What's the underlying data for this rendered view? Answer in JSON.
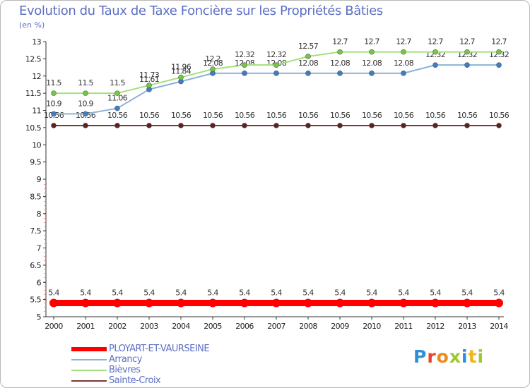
{
  "header": {
    "title": "Evolution du Taux de Taxe Foncière sur les Propriétés Bâties",
    "unit": "(en %)"
  },
  "chart_data": {
    "type": "line",
    "title": "Evolution du Taux de Taxe Foncière sur les Propriétés Bâties",
    "ylabel": "(en %)",
    "xlabel": "",
    "ylim": [
      5,
      13
    ],
    "yticks": [
      5,
      5.5,
      6,
      6.5,
      7,
      7.5,
      8,
      8.5,
      9,
      9.5,
      10,
      10.5,
      11,
      11.5,
      12,
      12.5,
      13
    ],
    "ytick_labels": [
      "5",
      "5.5",
      "6",
      "6.5",
      "7",
      "7.5",
      "8",
      "8.5",
      "9",
      "9.5",
      "10",
      "10.5",
      "11",
      "11.5",
      "12",
      "12.5",
      "13"
    ],
    "categories": [
      "2000",
      "2001",
      "2002",
      "2003",
      "2004",
      "2005",
      "2006",
      "2007",
      "2008",
      "2009",
      "2010",
      "2011",
      "2012",
      "2013",
      "2014"
    ],
    "series": [
      {
        "name": "PLOYART-ET-VAURSEINE",
        "color": "#ff0000",
        "marker": "#ff0000",
        "values": [
          5.4,
          5.4,
          5.4,
          5.4,
          5.4,
          5.4,
          5.4,
          5.4,
          5.4,
          5.4,
          5.4,
          5.4,
          5.4,
          5.4,
          5.4
        ],
        "labels": [
          "5.4",
          "5.4",
          "5.4",
          "5.4",
          "5.4",
          "5.4",
          "5.4",
          "5.4",
          "5.4",
          "5.4",
          "5.4",
          "5.4",
          "5.4",
          "5.4",
          "5.4"
        ]
      },
      {
        "name": "Arrancy",
        "color": "#8db2da",
        "marker": "#3d7ec4",
        "values": [
          10.9,
          10.9,
          11.06,
          11.61,
          11.84,
          12.08,
          12.08,
          12.08,
          12.08,
          12.08,
          12.08,
          12.08,
          12.32,
          12.32,
          12.32
        ],
        "labels": [
          "10.9",
          "10.9",
          "11.06",
          "11.61",
          "11.84",
          "12.08",
          "12.08",
          "12.08",
          "12.08",
          "12.08",
          "12.08",
          "12.08",
          "12.32",
          "12.32",
          "12.32"
        ]
      },
      {
        "name": "Bièvres",
        "color": "#a6e07d",
        "marker": "#74c944",
        "values": [
          11.5,
          11.5,
          11.5,
          11.73,
          11.96,
          12.2,
          12.32,
          12.32,
          12.57,
          12.7,
          12.7,
          12.7,
          12.7,
          12.7,
          12.7
        ],
        "labels": [
          "11.5",
          "11.5",
          "11.5",
          "11.73",
          "11.96",
          "12.2",
          "12.32",
          "12.32",
          "12.57",
          "12.7",
          "12.7",
          "12.7",
          "12.7",
          "12.7",
          "12.7"
        ]
      },
      {
        "name": "Sainte-Croix",
        "color": "#7a3535",
        "marker": "#5c2222",
        "values": [
          10.56,
          10.56,
          10.56,
          10.56,
          10.56,
          10.56,
          10.56,
          10.56,
          10.56,
          10.56,
          10.56,
          10.56,
          10.56,
          10.56,
          10.56
        ],
        "labels": [
          "10.56",
          "10.56",
          "10.56",
          "10.56",
          "10.56",
          "10.56",
          "10.56",
          "10.56",
          "10.56",
          "10.56",
          "10.56",
          "10.56",
          "10.56",
          "10.56",
          "10.56"
        ]
      }
    ],
    "grid": false,
    "legend": "bottom-left"
  },
  "legend": {
    "items": [
      {
        "label": "PLOYART-ET-VAURSEINE",
        "color": "#ff0000"
      },
      {
        "label": "Arrancy",
        "color": "#8db2da"
      },
      {
        "label": "Bièvres",
        "color": "#a6e07d"
      },
      {
        "label": "Sainte-Croix",
        "color": "#7a3535"
      }
    ]
  },
  "logo": {
    "letters": [
      "P",
      "r",
      "o",
      "x",
      "i",
      "t",
      "i"
    ],
    "colors": [
      "#2e8fd8",
      "#e8452c",
      "#e88c1e",
      "#9acb2e",
      "#2e8fd8",
      "#f0b41a",
      "#9acb2e"
    ]
  }
}
